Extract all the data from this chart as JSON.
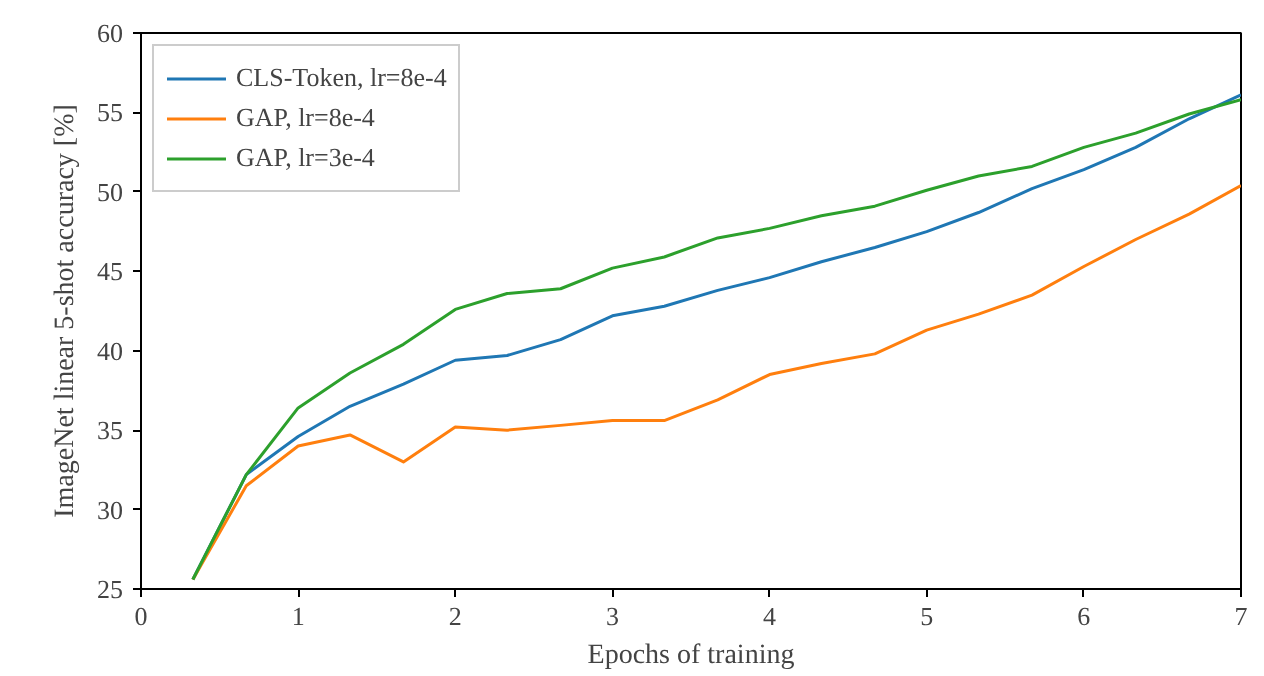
{
  "chart_data": {
    "type": "line",
    "xlabel": "Epochs of training",
    "ylabel": "ImageNet linear 5-shot accuracy [%]",
    "x": [
      0.33,
      0.67,
      1,
      1.33,
      1.67,
      2,
      2.33,
      2.67,
      3,
      3.33,
      3.67,
      4,
      4.33,
      4.67,
      5,
      5.33,
      5.67,
      6,
      6.33,
      6.67,
      7
    ],
    "series": [
      {
        "name": "CLS-Token, lr=8e-4",
        "color": "#1f77b4",
        "values": [
          25.6,
          32.2,
          34.6,
          36.5,
          37.9,
          39.4,
          39.7,
          40.7,
          42.2,
          42.8,
          43.8,
          44.6,
          45.6,
          46.5,
          47.5,
          48.7,
          50.2,
          51.4,
          52.8,
          54.6,
          56.1
        ]
      },
      {
        "name": "GAP, lr=8e-4",
        "color": "#ff7f0e",
        "values": [
          25.6,
          31.5,
          34.0,
          34.7,
          33.0,
          35.2,
          35.0,
          35.3,
          35.6,
          35.6,
          36.9,
          38.5,
          39.2,
          39.8,
          41.3,
          42.3,
          43.5,
          45.3,
          47.0,
          48.6,
          50.4
        ]
      },
      {
        "name": "GAP, lr=3e-4",
        "color": "#2ca02c",
        "values": [
          25.6,
          32.2,
          36.4,
          38.6,
          40.4,
          42.6,
          43.6,
          43.9,
          45.2,
          45.9,
          47.1,
          47.7,
          48.5,
          49.1,
          50.1,
          51.0,
          51.6,
          52.8,
          53.7,
          54.9,
          55.8
        ]
      }
    ],
    "xlim": [
      0,
      7
    ],
    "ylim": [
      25,
      60
    ],
    "xticks": [
      0,
      1,
      2,
      3,
      4,
      5,
      6,
      7
    ],
    "yticks": [
      25,
      30,
      35,
      40,
      45,
      50,
      55,
      60
    ],
    "grid": false,
    "legend": "top left"
  }
}
